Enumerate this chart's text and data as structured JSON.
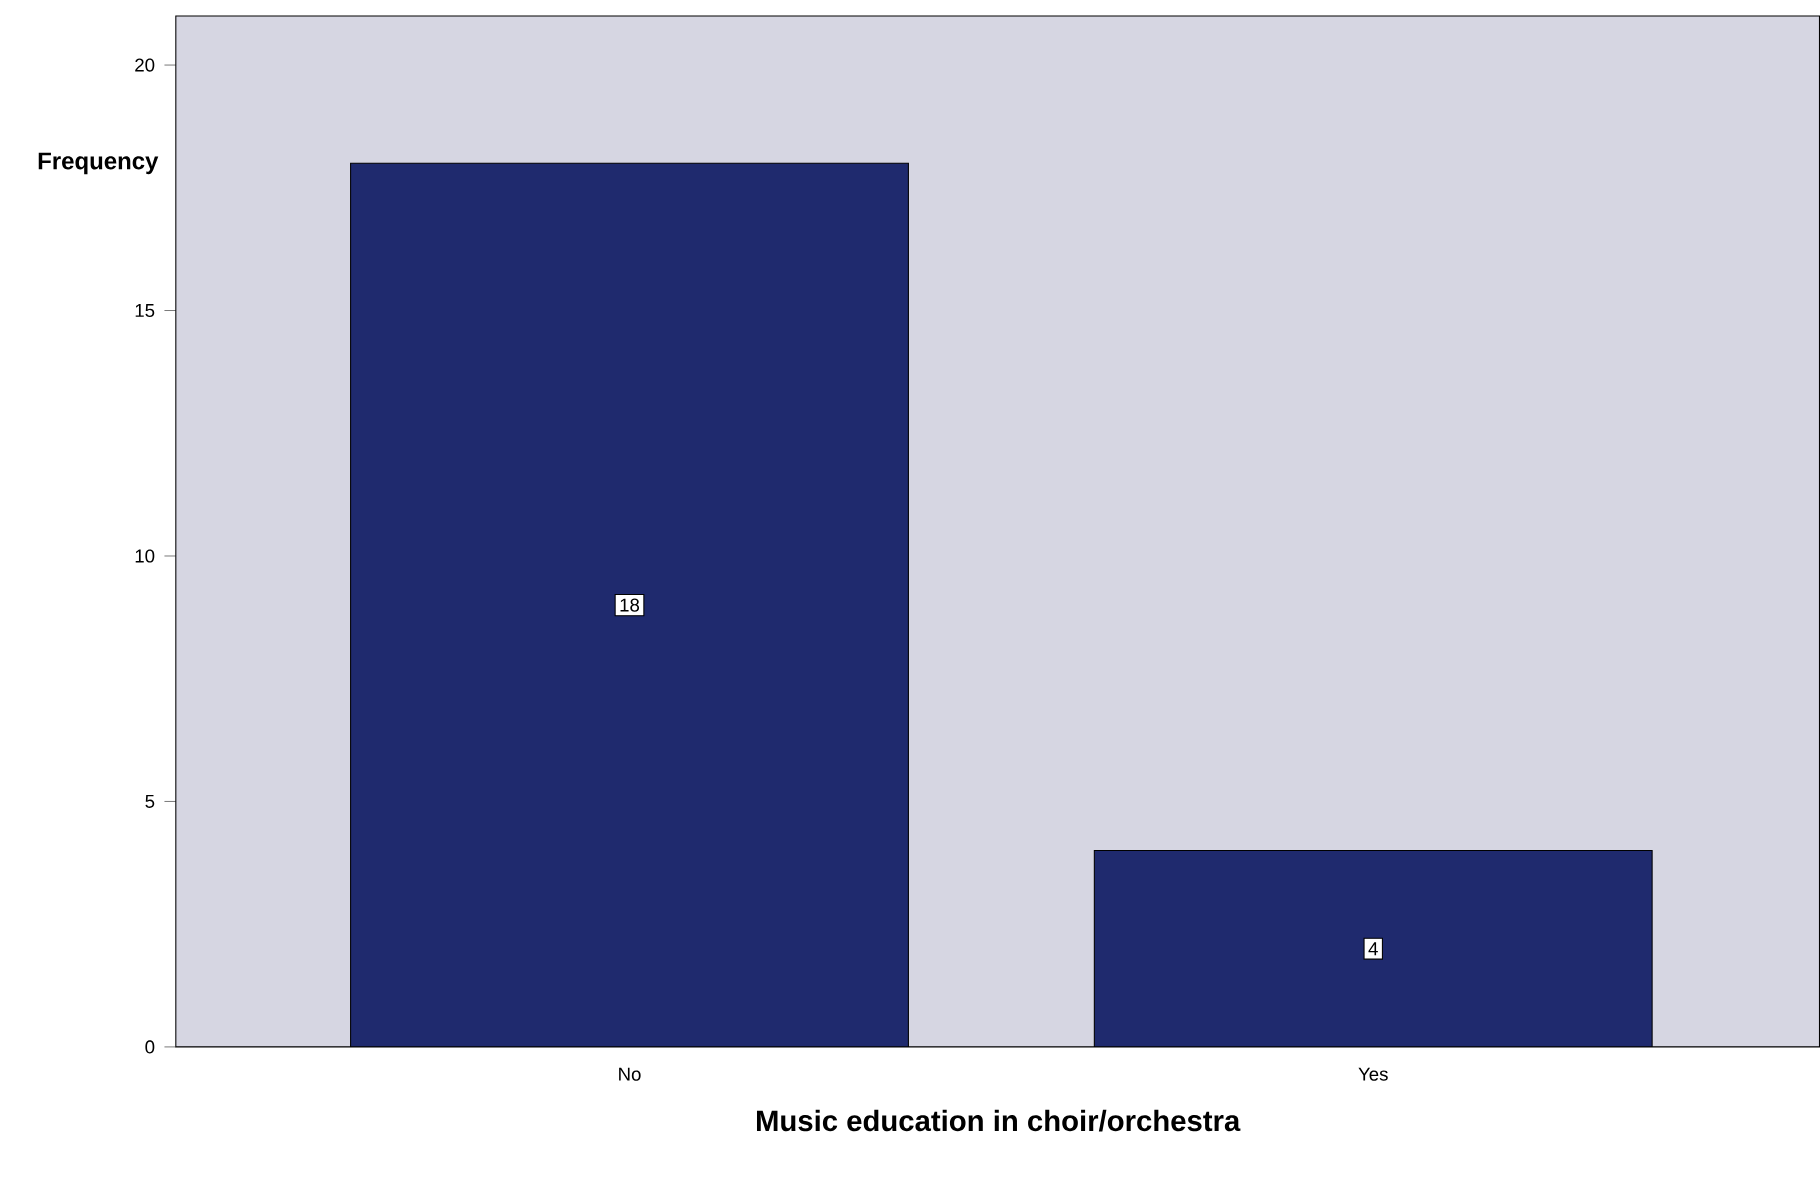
{
  "chart_data": {
    "type": "bar",
    "xlabel": "Music education in choir/orchestra",
    "ylabel": "Frequency",
    "categories": [
      "No",
      "Yes"
    ],
    "values": [
      18,
      4
    ],
    "color": "#1f2a6e",
    "ylim": [
      0,
      21
    ],
    "yticks": [
      0,
      5,
      10,
      15,
      20
    ],
    "data_labels": true
  }
}
